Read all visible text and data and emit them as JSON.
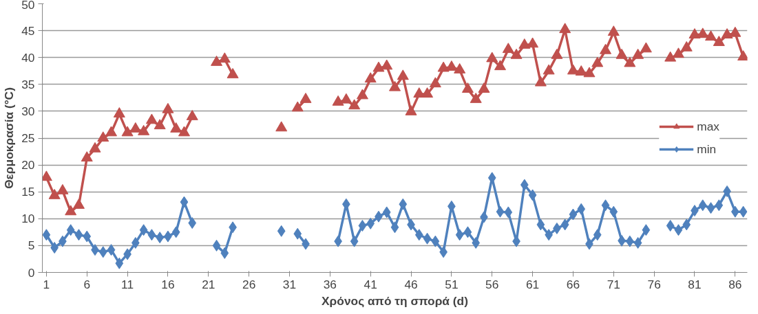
{
  "chart_data": {
    "type": "line",
    "xlabel": "Χρόνος από τη σπορά (d)",
    "ylabel": "Θερμοκρασία (°C)",
    "x": [
      1,
      2,
      3,
      4,
      5,
      6,
      7,
      8,
      9,
      10,
      11,
      12,
      13,
      14,
      15,
      16,
      17,
      18,
      19,
      20,
      21,
      22,
      23,
      24,
      25,
      26,
      27,
      28,
      29,
      30,
      31,
      32,
      33,
      34,
      35,
      36,
      37,
      38,
      39,
      40,
      41,
      42,
      43,
      44,
      45,
      46,
      47,
      48,
      49,
      50,
      51,
      52,
      53,
      54,
      55,
      56,
      57,
      58,
      59,
      60,
      61,
      62,
      63,
      64,
      65,
      66,
      67,
      68,
      69,
      70,
      71,
      72,
      73,
      74,
      75,
      76,
      77,
      78,
      79,
      80,
      81,
      82,
      83,
      84,
      85,
      86,
      87
    ],
    "xlim": [
      0.5,
      87.5
    ],
    "xticks": [
      1,
      6,
      11,
      16,
      21,
      26,
      31,
      36,
      41,
      46,
      51,
      56,
      61,
      66,
      71,
      76,
      81,
      86
    ],
    "ylim": [
      0,
      50
    ],
    "yticks": [
      0,
      5,
      10,
      15,
      20,
      25,
      30,
      35,
      40,
      45,
      50
    ],
    "grid": "y",
    "legend": "right",
    "series": [
      {
        "name": "max",
        "color": "#c0504d",
        "marker": "triangle",
        "values": [
          17.7,
          14.3,
          15.2,
          11.3,
          12.5,
          21.3,
          23.0,
          25.0,
          26.0,
          29.5,
          26.0,
          26.7,
          26.2,
          28.3,
          27.3,
          30.3,
          26.7,
          26.0,
          29.0,
          null,
          null,
          39.1,
          39.7,
          36.8,
          null,
          null,
          null,
          null,
          null,
          26.9,
          null,
          30.6,
          32.2,
          null,
          null,
          null,
          31.7,
          32.1,
          31.0,
          32.9,
          36.0,
          38.0,
          38.4,
          34.4,
          36.5,
          29.9,
          33.2,
          33.2,
          35.1,
          38.0,
          38.2,
          37.7,
          34.1,
          32.2,
          34.1,
          39.8,
          38.3,
          41.5,
          40.4,
          42.3,
          42.5,
          35.3,
          37.5,
          40.4,
          45.2,
          37.5,
          37.3,
          37.0,
          38.9,
          41.3,
          44.7,
          40.4,
          38.9,
          40.4,
          41.6,
          null,
          null,
          39.9,
          40.6,
          41.8,
          44.2,
          44.3,
          43.8,
          42.8,
          44.2,
          44.5,
          40.1
        ]
      },
      {
        "name": "min",
        "color": "#4f81bd",
        "marker": "diamond",
        "values": [
          7.0,
          4.6,
          5.8,
          7.9,
          7.0,
          6.7,
          4.2,
          3.8,
          4.2,
          1.7,
          3.4,
          5.5,
          7.9,
          7.0,
          6.5,
          6.7,
          7.5,
          13.1,
          9.2,
          null,
          null,
          5.0,
          3.6,
          8.4,
          null,
          null,
          null,
          null,
          null,
          7.7,
          null,
          7.2,
          5.3,
          null,
          null,
          null,
          5.8,
          12.7,
          5.8,
          8.7,
          9.1,
          10.4,
          11.2,
          8.4,
          12.7,
          8.9,
          7.0,
          6.3,
          5.8,
          3.8,
          12.3,
          7.0,
          7.5,
          5.5,
          10.3,
          17.6,
          11.3,
          11.2,
          5.8,
          16.3,
          14.4,
          8.9,
          7.0,
          8.2,
          8.9,
          10.8,
          11.8,
          5.3,
          7.0,
          12.5,
          11.3,
          5.9,
          5.8,
          5.5,
          7.9,
          null,
          null,
          8.7,
          7.9,
          8.9,
          11.5,
          12.5,
          12.0,
          12.5,
          15.1,
          11.3,
          11.3
        ]
      }
    ]
  }
}
